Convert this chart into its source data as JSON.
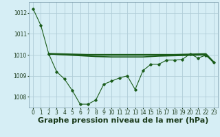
{
  "title": "Graphe pression niveau de la mer (hPa)",
  "background_color": "#d6eef5",
  "grid_color": "#b0cdd8",
  "line_color": "#1a5c1a",
  "xlim": [
    -0.5,
    23.5
  ],
  "ylim": [
    1007.5,
    1012.5
  ],
  "yticks": [
    1008,
    1009,
    1010,
    1011,
    1012
  ],
  "xticks": [
    0,
    1,
    2,
    3,
    4,
    5,
    6,
    7,
    8,
    9,
    10,
    11,
    12,
    13,
    14,
    15,
    16,
    17,
    18,
    19,
    20,
    21,
    22,
    23
  ],
  "line1_x": [
    0,
    1,
    2,
    3,
    4,
    5,
    6,
    7,
    8,
    9,
    10,
    11,
    12,
    13,
    14,
    15,
    16,
    17,
    18,
    19,
    20,
    21,
    22,
    23
  ],
  "line1_y": [
    1012.2,
    1011.4,
    1010.05,
    1009.2,
    1008.85,
    1008.3,
    1007.65,
    1007.65,
    1007.85,
    1008.6,
    1008.75,
    1008.9,
    1009.0,
    1008.35,
    1009.25,
    1009.55,
    1009.55,
    1009.75,
    1009.75,
    1009.78,
    1010.05,
    1009.85,
    1009.98,
    1009.65
  ],
  "line2_x": [
    2,
    3,
    4,
    5,
    6,
    7,
    8,
    9,
    10,
    11,
    12,
    13,
    14,
    15,
    16,
    17,
    18,
    19,
    20,
    21,
    22,
    23
  ],
  "line2_y": [
    1010.05,
    1010.02,
    1010.0,
    1009.98,
    1009.96,
    1009.94,
    1009.92,
    1009.91,
    1009.9,
    1009.9,
    1009.9,
    1009.9,
    1009.9,
    1009.92,
    1009.94,
    1009.95,
    1009.96,
    1009.97,
    1009.98,
    1009.99,
    1010.0,
    1009.65
  ],
  "line3_x": [
    2,
    3,
    4,
    5,
    6,
    7,
    8,
    9,
    10,
    11,
    12,
    13,
    14,
    15,
    16,
    17,
    18,
    19,
    20,
    21,
    22,
    23
  ],
  "line3_y": [
    1010.05,
    1010.04,
    1010.03,
    1010.02,
    1010.01,
    1010.0,
    1010.0,
    1010.0,
    1010.0,
    1010.0,
    1010.0,
    1010.0,
    1010.0,
    1010.0,
    1010.0,
    1010.0,
    1010.0,
    1010.01,
    1010.02,
    1010.03,
    1010.04,
    1009.65
  ],
  "title_fontsize": 8,
  "tick_fontsize": 5.5
}
